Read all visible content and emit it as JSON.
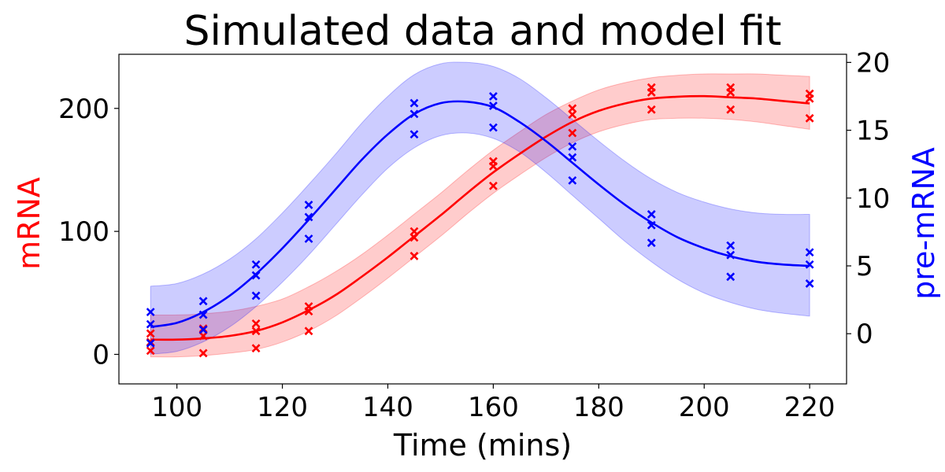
{
  "chart_data": {
    "type": "line",
    "title": "Simulated data and model fit",
    "xlabel": "Time (mins)",
    "xlim": [
      89,
      227
    ],
    "x_ticks": [
      100,
      120,
      140,
      160,
      180,
      200,
      220
    ],
    "left_axis": {
      "label": "mRNA",
      "color": "#ff0000",
      "ylim": [
        -24,
        244
      ],
      "ticks": [
        0,
        100,
        200
      ]
    },
    "right_axis": {
      "label": "pre-mRNA",
      "color": "#0000ff",
      "ylim": [
        -3.7,
        20.6
      ],
      "ticks": [
        0,
        5,
        10,
        15,
        20
      ]
    },
    "grid": false,
    "series": [
      {
        "axis": "left",
        "color": "#ff0000",
        "fit": {
          "x": [
            95,
            100,
            105,
            110,
            115,
            120,
            125,
            130,
            135,
            140,
            145,
            150,
            155,
            160,
            165,
            170,
            175,
            180,
            185,
            190,
            195,
            200,
            205,
            210,
            215,
            220
          ],
          "y": [
            12,
            12,
            13,
            15,
            19,
            26,
            36,
            48,
            63,
            79,
            96,
            113,
            131,
            148,
            163,
            177,
            189,
            198,
            204,
            208,
            209.5,
            210,
            209,
            208,
            206,
            204
          ],
          "lower": [
            -2,
            -2,
            -1,
            1,
            4,
            10,
            19,
            31,
            46,
            62,
            79,
            96,
            114,
            131,
            146,
            160,
            172,
            181,
            187,
            191,
            192,
            192,
            191,
            189,
            186,
            183
          ],
          "upper": [
            32,
            32,
            33,
            35,
            39,
            45,
            55,
            67,
            81,
            97,
            114,
            131,
            149,
            166,
            181,
            195,
            206,
            215,
            221,
            225,
            227,
            228,
            228,
            228,
            227,
            226
          ]
        },
        "points": [
          [
            95,
            3
          ],
          [
            95,
            10
          ],
          [
            95,
            17
          ],
          [
            105,
            1
          ],
          [
            105,
            15
          ],
          [
            105,
            21
          ],
          [
            115,
            5
          ],
          [
            115,
            19
          ],
          [
            115,
            25
          ],
          [
            125,
            19
          ],
          [
            125,
            35
          ],
          [
            125,
            39
          ],
          [
            145,
            80
          ],
          [
            145,
            95
          ],
          [
            145,
            100
          ],
          [
            160,
            137
          ],
          [
            160,
            153
          ],
          [
            160,
            157
          ],
          [
            175,
            180
          ],
          [
            175,
            195
          ],
          [
            175,
            200
          ],
          [
            190,
            199
          ],
          [
            190,
            213
          ],
          [
            190,
            217
          ],
          [
            205,
            199
          ],
          [
            205,
            213
          ],
          [
            205,
            217
          ],
          [
            220,
            192
          ],
          [
            220,
            208
          ],
          [
            220,
            212
          ]
        ]
      },
      {
        "axis": "right",
        "color": "#0000ff",
        "fit": {
          "x": [
            95,
            100,
            105,
            110,
            115,
            120,
            125,
            130,
            135,
            140,
            145,
            150,
            155,
            160,
            165,
            170,
            175,
            180,
            185,
            190,
            195,
            200,
            205,
            210,
            215,
            220
          ],
          "y": [
            0.5,
            0.8,
            1.6,
            2.8,
            4.4,
            6.3,
            8.4,
            10.6,
            12.8,
            14.7,
            16.2,
            17.0,
            17.1,
            16.7,
            15.6,
            14.2,
            12.6,
            11.0,
            9.5,
            8.2,
            7.1,
            6.3,
            5.7,
            5.3,
            5.1,
            5.0
          ],
          "lower": [
            -1.5,
            -1.3,
            -0.6,
            0.5,
            2.0,
            3.8,
            5.8,
            8.0,
            10.2,
            12.2,
            13.7,
            14.6,
            14.8,
            14.4,
            13.4,
            11.9,
            10.2,
            8.5,
            6.8,
            5.3,
            4.0,
            3.0,
            2.3,
            1.8,
            1.5,
            1.3
          ],
          "upper": [
            3.5,
            3.7,
            4.4,
            5.5,
            7.0,
            8.9,
            11.0,
            13.2,
            15.5,
            17.5,
            19.1,
            19.9,
            20.0,
            19.7,
            18.8,
            17.4,
            15.8,
            14.2,
            12.7,
            11.4,
            10.4,
            9.7,
            9.2,
            8.9,
            8.8,
            8.8
          ]
        },
        "points": [
          [
            95,
            -0.7
          ],
          [
            95,
            0.7
          ],
          [
            95,
            1.6
          ],
          [
            105,
            0.3
          ],
          [
            105,
            1.4
          ],
          [
            105,
            2.4
          ],
          [
            115,
            2.8
          ],
          [
            115,
            4.3
          ],
          [
            115,
            5.1
          ],
          [
            125,
            7.0
          ],
          [
            125,
            8.6
          ],
          [
            125,
            9.5
          ],
          [
            145,
            14.7
          ],
          [
            145,
            16.2
          ],
          [
            145,
            17.0
          ],
          [
            160,
            15.2
          ],
          [
            160,
            16.8
          ],
          [
            160,
            17.5
          ],
          [
            175,
            11.3
          ],
          [
            175,
            13.0
          ],
          [
            175,
            13.8
          ],
          [
            190,
            6.7
          ],
          [
            190,
            8.0
          ],
          [
            190,
            8.8
          ],
          [
            205,
            4.2
          ],
          [
            205,
            5.8
          ],
          [
            205,
            6.5
          ],
          [
            220,
            3.7
          ],
          [
            220,
            5.1
          ],
          [
            220,
            6.0
          ]
        ]
      }
    ]
  }
}
